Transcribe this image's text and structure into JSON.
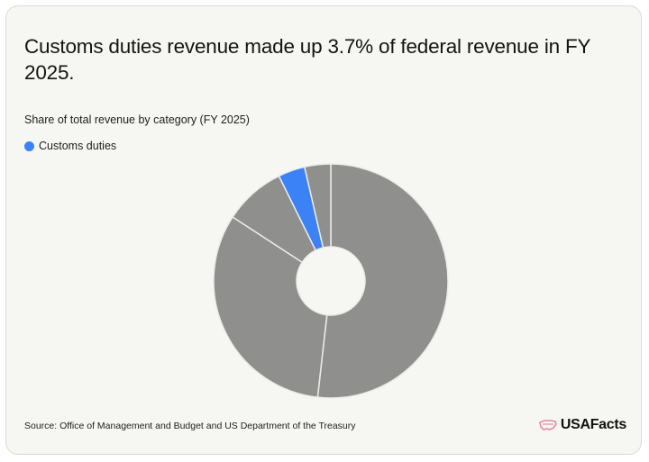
{
  "title": "Customs duties revenue made up 3.7% of federal revenue in FY 2025.",
  "subtitle": "Share of total revenue by category (FY 2025)",
  "legend": {
    "label": "Customs duties",
    "color": "#3b82f6"
  },
  "source": "Source: Office of Management and Budget and US Department of the Treasury",
  "brand": {
    "name": "USAFacts",
    "color": "#e58aa6"
  },
  "colors": {
    "other": "#8f8f8d",
    "highlight": "#3b82f6",
    "divider": "#ecece8"
  },
  "chart_data": {
    "type": "pie",
    "title": "Customs duties revenue made up 3.7% of federal revenue in FY 2025.",
    "subtitle": "Share of total revenue by category (FY 2025)",
    "donut": true,
    "categories": [
      "",
      "",
      "",
      "Customs duties",
      ""
    ],
    "values": [
      51.8,
      32.4,
      8.5,
      3.7,
      3.6
    ],
    "highlight": "Customs duties",
    "legend_position": "top-left"
  }
}
